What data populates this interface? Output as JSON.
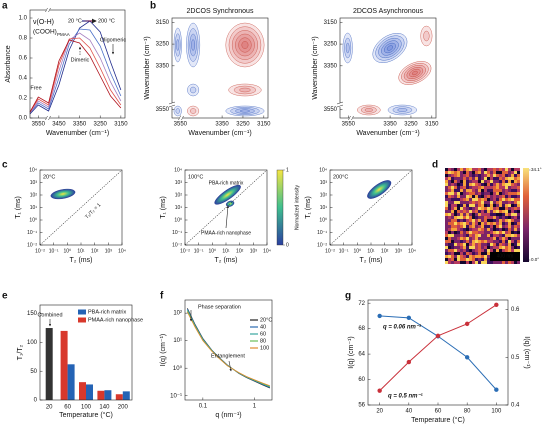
{
  "chart_data": [
    {
      "type": "line",
      "label": "a",
      "xlabel": "Wavenumber (cm⁻¹)",
      "ylabel": "Absorbance",
      "x": [
        3590,
        3550,
        3500,
        3450,
        3400,
        3350,
        3300,
        3250,
        3200,
        3150
      ],
      "xlim": [
        3590,
        3130
      ],
      "xticks": [
        3550,
        3450,
        3350,
        3250,
        3150
      ],
      "ylim": [
        0,
        1.08
      ],
      "yticks": [
        {
          "value": 0,
          "label": "0.0"
        },
        {
          "value": 0.2,
          "label": "0.2"
        },
        {
          "value": 0.4,
          "label": "0.4"
        },
        {
          "value": 0.6,
          "label": "0.6"
        },
        {
          "value": 0.8,
          "label": "0.8"
        },
        {
          "value": 1,
          "label": "1.0"
        }
      ],
      "series": [
        {
          "color": "#1f2a8c",
          "values": [
            0.04,
            0.13,
            0.07,
            0.33,
            0.68,
            0.9,
            0.97,
            0.86,
            0.56,
            0.28
          ]
        },
        {
          "color": "#4a6fc8",
          "values": [
            0.05,
            0.15,
            0.09,
            0.4,
            0.74,
            0.89,
            0.88,
            0.72,
            0.45,
            0.22
          ]
        },
        {
          "color": "#a77fc0",
          "values": [
            0.05,
            0.17,
            0.11,
            0.47,
            0.78,
            0.85,
            0.78,
            0.6,
            0.36,
            0.17
          ]
        },
        {
          "color": "#e0504a",
          "values": [
            0.06,
            0.19,
            0.13,
            0.53,
            0.79,
            0.8,
            0.7,
            0.5,
            0.28,
            0.13
          ]
        },
        {
          "color": "#b0101a",
          "values": [
            0.06,
            0.21,
            0.15,
            0.57,
            0.78,
            0.75,
            0.62,
            0.42,
            0.22,
            0.1
          ]
        }
      ],
      "annotations": [
        "ν(O-H)",
        "(COOH)",
        "PMAA",
        "20 °C",
        "200 °C",
        "Free",
        "Dimeric",
        "Oligomeric"
      ]
    },
    {
      "type": "contour",
      "label": "b",
      "title": "2DCOS Synchronous",
      "xlabel": "Wavenumber (cm⁻¹)",
      "ylabel": "Wavenumber (cm⁻¹)",
      "xlim": [
        3590,
        3130
      ],
      "xticks": [
        3550,
        3350,
        3250,
        3150
      ],
      "ylim": [
        3590,
        3130
      ],
      "yticks": [
        3150,
        3250,
        3350,
        3550
      ]
    },
    {
      "type": "contour",
      "title": "2DCOS Asynchronous",
      "xlabel": "Wavenumber (cm⁻¹)",
      "ylabel": "Wavenumber (cm⁻¹)",
      "xlim": [
        3590,
        3130
      ],
      "xticks": [
        3550,
        3350,
        3250,
        3150
      ],
      "ylim": [
        3590,
        3130
      ],
      "yticks": [
        3150,
        3250,
        3350,
        3550
      ]
    },
    {
      "type": "map",
      "label": "c",
      "xlabel": "T₂ (ms)",
      "ylabel": "T₁ (ms)",
      "xscale": "log",
      "yscale": "log",
      "xlim": [
        0.01,
        10000
      ],
      "ylim": [
        0.01,
        10000
      ],
      "xticks": [
        {
          "value": 0.01,
          "label": "10⁻²"
        },
        {
          "value": 0.1,
          "label": "10⁻¹"
        },
        {
          "value": 1,
          "label": "10⁰"
        },
        {
          "value": 10,
          "label": "10¹"
        },
        {
          "value": 100,
          "label": "10²"
        },
        {
          "value": 1000,
          "label": "10³"
        },
        {
          "value": 10000,
          "label": "10⁴"
        }
      ],
      "yticks": [
        {
          "value": 0.01,
          "label": "10⁻²"
        },
        {
          "value": 0.1,
          "label": "10⁻¹"
        },
        {
          "value": 1,
          "label": "10⁰"
        },
        {
          "value": 10,
          "label": "10¹"
        },
        {
          "value": 100,
          "label": "10²"
        },
        {
          "value": 1000,
          "label": "10³"
        },
        {
          "value": 10000,
          "label": "10⁴"
        }
      ],
      "annotations": [
        "20°C",
        "T₁/T₂ = 1"
      ]
    },
    {
      "type": "map",
      "xlabel": "T₂ (ms)",
      "ylabel": "T₁ (ms)",
      "xscale": "log",
      "yscale": "log",
      "xlim": [
        0.01,
        10000
      ],
      "ylim": [
        0.01,
        10000
      ],
      "xticks": [
        {
          "value": 0.01,
          "label": "10⁻²"
        },
        {
          "value": 0.1,
          "label": "10⁻¹"
        },
        {
          "value": 1,
          "label": "10⁰"
        },
        {
          "value": 10,
          "label": "10¹"
        },
        {
          "value": 100,
          "label": "10²"
        },
        {
          "value": 1000,
          "label": "10³"
        },
        {
          "value": 10000,
          "label": "10⁴"
        }
      ],
      "yticks": [
        {
          "value": 0.01,
          "label": "10⁻²"
        },
        {
          "value": 0.1,
          "label": "10⁻¹"
        },
        {
          "value": 1,
          "label": "10⁰"
        },
        {
          "value": 10,
          "label": "10¹"
        },
        {
          "value": 100,
          "label": "10²"
        },
        {
          "value": 1000,
          "label": "10³"
        },
        {
          "value": 10000,
          "label": "10⁴"
        }
      ],
      "annotations": [
        "100°C",
        "PBA-rich matrix",
        "PMAA-rich nanophase"
      ],
      "colorbar": {
        "label": "Normalized intensity",
        "lim": [
          0,
          1
        ],
        "ticks": [
          0,
          1
        ]
      }
    },
    {
      "type": "map",
      "xlabel": "T₂ (ms)",
      "ylabel": "T₁ (ms)",
      "xscale": "log",
      "yscale": "log",
      "xlim": [
        0.01,
        10000
      ],
      "ylim": [
        0.01,
        10000
      ],
      "xticks": [
        {
          "value": 0.01,
          "label": "10⁻²"
        },
        {
          "value": 0.1,
          "label": "10⁻¹"
        },
        {
          "value": 1,
          "label": "10⁰"
        },
        {
          "value": 10,
          "label": "10¹"
        },
        {
          "value": 100,
          "label": "10²"
        },
        {
          "value": 1000,
          "label": "10³"
        },
        {
          "value": 10000,
          "label": "10⁴"
        }
      ],
      "yticks": [
        {
          "value": 0.01,
          "label": "10⁻²"
        },
        {
          "value": 0.1,
          "label": "10⁻¹"
        },
        {
          "value": 1,
          "label": "10⁰"
        },
        {
          "value": 10,
          "label": "10¹"
        },
        {
          "value": 100,
          "label": "10²"
        },
        {
          "value": 1000,
          "label": "10³"
        },
        {
          "value": 10000,
          "label": "10⁴"
        }
      ],
      "annotations": [
        "200°C"
      ]
    },
    {
      "type": "image",
      "label": "d",
      "clim": [
        0,
        34.1
      ],
      "cticks": [
        {
          "value": 34.1,
          "label": "34.1°"
        },
        {
          "value": 0,
          "label": "0.0°"
        }
      ],
      "annotations": [
        "400 nm"
      ]
    },
    {
      "type": "bar",
      "label": "e",
      "xlabel": "Temperature (°C)",
      "ylabel": "T₁/T₂",
      "categories": [
        "20",
        "60",
        "100",
        "140",
        "200"
      ],
      "ylim": [
        0,
        165
      ],
      "yticks": [
        0,
        50,
        100,
        150
      ],
      "legend": "upper right",
      "series": [
        {
          "color": "#333333",
          "values": [
            125,
            null,
            null,
            null,
            null
          ]
        },
        {
          "name": "PBA-rich matrix",
          "color": "#2463b5",
          "values": [
            null,
            62,
            27,
            17,
            15
          ]
        },
        {
          "name": "PMAA-rich nanophase",
          "color": "#d8382c",
          "values": [
            null,
            120,
            31,
            16,
            10
          ]
        }
      ],
      "annotations": [
        "Combined"
      ]
    },
    {
      "type": "line",
      "label": "f",
      "xlabel": "q (nm⁻¹)",
      "ylabel": "I(q) (cm⁻¹)",
      "xscale": "log",
      "yscale": "log",
      "x": [
        0.05,
        0.07,
        0.1,
        0.15,
        0.2,
        0.3,
        0.5,
        0.7,
        1,
        1.5,
        2
      ],
      "xlim": [
        0.045,
        2.2
      ],
      "xticks": [
        0.1,
        1
      ],
      "ylim": [
        0.07,
        300
      ],
      "yticks": [
        {
          "value": 0.1,
          "label": "10⁻¹"
        },
        {
          "value": 1,
          "label": "10⁰"
        },
        {
          "value": 10,
          "label": "10¹"
        },
        {
          "value": 100,
          "label": "10²"
        }
      ],
      "legend": "upper right",
      "series": [
        {
          "name": "20°C",
          "color": "#222222",
          "values": [
            150,
            40,
            12,
            4.5,
            2.6,
            1.3,
            0.65,
            0.46,
            0.34,
            0.24,
            0.19
          ]
        },
        {
          "name": "40",
          "color": "#2b6cb0",
          "values": [
            140,
            38,
            11.5,
            4.4,
            2.55,
            1.28,
            0.66,
            0.47,
            0.35,
            0.25,
            0.2
          ]
        },
        {
          "name": "60",
          "color": "#3aa6a0",
          "values": [
            130,
            36,
            11,
            4.3,
            2.5,
            1.26,
            0.67,
            0.48,
            0.36,
            0.26,
            0.21
          ]
        },
        {
          "name": "80",
          "color": "#6bbf59",
          "values": [
            120,
            34,
            10.5,
            4.2,
            2.45,
            1.24,
            0.68,
            0.49,
            0.37,
            0.27,
            0.22
          ]
        },
        {
          "name": "100",
          "color": "#e08a2e",
          "values": [
            110,
            32,
            10,
            4.1,
            2.4,
            1.22,
            0.69,
            0.5,
            0.38,
            0.28,
            0.23
          ]
        }
      ],
      "annotations": [
        "Phase separation",
        "Entanglement"
      ]
    },
    {
      "type": "line",
      "label": "g",
      "xlabel": "Temperature (°C)",
      "ylabel": "I(q) (cm⁻¹)",
      "y2label": "I(q) (cm⁻¹)",
      "x": [
        20,
        40,
        60,
        80,
        100
      ],
      "xlim": [
        12,
        108
      ],
      "xticks": [
        20,
        40,
        60,
        80,
        100
      ],
      "ylim": [
        56,
        72.5
      ],
      "yticks": [
        56,
        60,
        64,
        68,
        72
      ],
      "y2lim": [
        0.4,
        0.62
      ],
      "y2ticks": [
        0.4,
        0.5,
        0.6
      ],
      "markers": true,
      "legend": "inline",
      "series": [
        {
          "name": "q = 0.06 nm⁻¹",
          "color": "#2a6db5",
          "values": [
            70,
            69.7,
            66.8,
            63.5,
            58.4
          ]
        },
        {
          "name": "q = 0.5 nm⁻¹",
          "color": "#c9303a",
          "axis": "y2",
          "values": [
            0.43,
            0.49,
            0.545,
            0.57,
            0.61
          ]
        }
      ]
    }
  ]
}
